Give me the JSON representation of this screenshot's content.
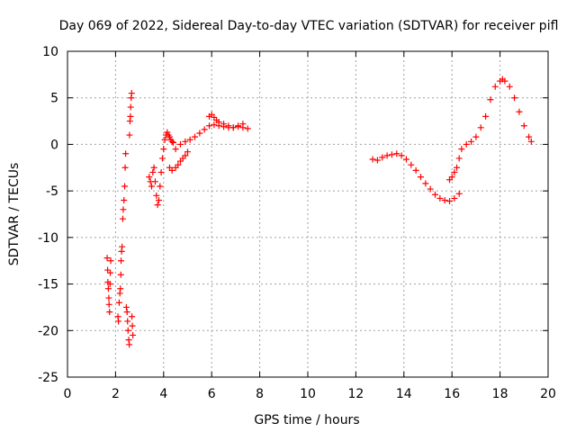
{
  "chart_data": {
    "type": "scatter",
    "title": "Day 069 of 2022, Sidereal Day-to-day VTEC variation (SDTVAR) for receiver pifl",
    "xlabel": "GPS time / hours",
    "ylabel": "SDTVAR / TECUs",
    "xlim": [
      0,
      20
    ],
    "ylim": [
      -25,
      10
    ],
    "xticks": [
      "0",
      "2",
      "4",
      "6",
      "8",
      "10",
      "12",
      "14",
      "16",
      "18",
      "20"
    ],
    "yticks": [
      "10",
      "5",
      "0",
      "-5",
      "-10",
      "-15",
      "-20",
      "-25"
    ],
    "grid": true,
    "marker": "+",
    "color": "#ff0000",
    "series": [
      {
        "name": "SDTVAR",
        "x": [
          1.65,
          1.67,
          1.68,
          1.7,
          1.72,
          1.73,
          1.75,
          1.77,
          1.78,
          1.8,
          2.1,
          2.12,
          2.15,
          2.18,
          2.2,
          2.22,
          2.23,
          2.25,
          2.27,
          2.3,
          2.32,
          2.35,
          2.38,
          2.4,
          2.42,
          2.45,
          2.48,
          2.5,
          2.52,
          2.55,
          2.57,
          2.58,
          2.6,
          2.62,
          2.63,
          2.65,
          2.67,
          2.68,
          2.7,
          2.72,
          3.4,
          3.45,
          3.5,
          3.55,
          3.6,
          3.65,
          3.7,
          3.75,
          3.8,
          3.85,
          3.9,
          3.95,
          4.0,
          4.05,
          4.1,
          4.15,
          4.2,
          4.25,
          4.3,
          4.35,
          4.4,
          4.25,
          4.35,
          4.5,
          4.6,
          4.7,
          4.8,
          4.9,
          5.0,
          4.5,
          4.7,
          4.9,
          5.1,
          5.3,
          5.5,
          5.7,
          5.9,
          6.1,
          6.3,
          6.5,
          6.7,
          6.9,
          7.1,
          7.3,
          7.5,
          5.9,
          6.0,
          6.1,
          6.2,
          6.3,
          6.5,
          6.7,
          6.9,
          7.1,
          7.3,
          12.7,
          12.9,
          13.1,
          13.3,
          13.5,
          13.7,
          13.9,
          14.1,
          14.3,
          14.5,
          14.7,
          14.9,
          15.1,
          15.3,
          15.5,
          15.7,
          15.9,
          16.1,
          16.3,
          15.9,
          16.0,
          16.1,
          16.2,
          16.3,
          16.4,
          16.6,
          16.8,
          17.0,
          17.2,
          17.4,
          17.6,
          17.8,
          18.0,
          18.1,
          18.2,
          18.4,
          18.6,
          18.8,
          19.0,
          19.2,
          19.3
        ],
        "y": [
          -12.2,
          -13.5,
          -14.8,
          -15.5,
          -16.5,
          -17.2,
          -18.0,
          -15.0,
          -13.8,
          -12.5,
          -18.5,
          -19.0,
          -17.0,
          -16.0,
          -15.5,
          -14.0,
          -12.5,
          -11.5,
          -11.0,
          -8.0,
          -7.0,
          -6.0,
          -4.5,
          -2.5,
          -1.0,
          -17.5,
          -18.0,
          -19.0,
          -20.0,
          -21.0,
          -21.5,
          1.0,
          2.5,
          3.0,
          4.0,
          5.0,
          5.5,
          -18.5,
          -19.5,
          -20.5,
          -3.5,
          -4.0,
          -4.5,
          -3.0,
          -2.5,
          -4.0,
          -5.5,
          -6.5,
          -6.0,
          -4.5,
          -3.0,
          -1.5,
          -0.5,
          0.5,
          1.0,
          1.3,
          1.0,
          0.8,
          0.5,
          0.3,
          0.2,
          -2.5,
          -2.8,
          -2.5,
          -2.2,
          -1.8,
          -1.5,
          -1.2,
          -0.8,
          -0.5,
          0.0,
          0.3,
          0.5,
          0.8,
          1.2,
          1.6,
          2.0,
          2.1,
          2.0,
          1.9,
          1.8,
          1.8,
          1.9,
          1.8,
          1.7,
          3.0,
          3.2,
          2.9,
          2.6,
          2.4,
          2.2,
          2.0,
          1.8,
          2.0,
          2.2,
          -1.6,
          -1.7,
          -1.4,
          -1.2,
          -1.1,
          -1.0,
          -1.2,
          -1.6,
          -2.2,
          -2.8,
          -3.5,
          -4.2,
          -4.8,
          -5.4,
          -5.8,
          -6.0,
          -6.1,
          -5.8,
          -5.3,
          -3.8,
          -3.5,
          -3.0,
          -2.5,
          -1.5,
          -0.5,
          0.0,
          0.3,
          0.8,
          1.8,
          3.0,
          4.8,
          6.2,
          6.8,
          7.0,
          6.8,
          6.2,
          5.0,
          3.5,
          2.0,
          0.8,
          0.3
        ]
      }
    ]
  }
}
